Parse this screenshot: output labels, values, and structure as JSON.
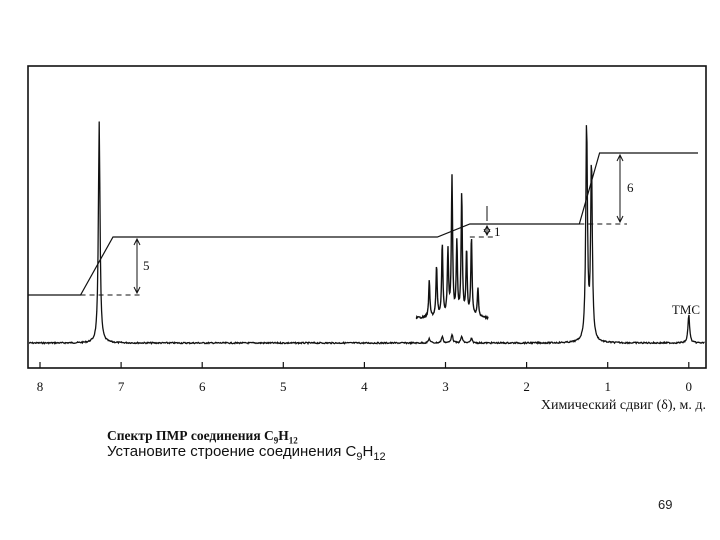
{
  "chart_data": {
    "type": "line",
    "xlabel": "Химический сдвиг (δ), м. д.",
    "xlim": [
      8.2,
      -0.2
    ],
    "x_reversed": true,
    "x_ticks": [
      8,
      7,
      6,
      5,
      4,
      3,
      2,
      1,
      0
    ],
    "peaks": [
      {
        "shift": 7.27,
        "height": 1.0,
        "label": ""
      },
      {
        "shift": 3.2,
        "height": 0.02,
        "label": ""
      },
      {
        "shift": 3.04,
        "height": 0.03,
        "label": ""
      },
      {
        "shift": 2.92,
        "height": 0.04,
        "label": ""
      },
      {
        "shift": 2.8,
        "height": 0.03,
        "label": ""
      },
      {
        "shift": 2.68,
        "height": 0.02,
        "label": ""
      },
      {
        "shift": 1.26,
        "height": 1.0,
        "label": ""
      },
      {
        "shift": 1.2,
        "height": 0.82,
        "label": ""
      },
      {
        "shift": 0.0,
        "height": 0.13,
        "label": "TMC"
      }
    ],
    "inset_multiplet": {
      "shifts": [
        3.2,
        3.11,
        3.04,
        2.97,
        2.92,
        2.86,
        2.8,
        2.74,
        2.68,
        2.6
      ],
      "heights": [
        0.25,
        0.35,
        0.5,
        0.45,
        0.95,
        0.5,
        0.85,
        0.45,
        0.55,
        0.2
      ]
    },
    "integration": [
      {
        "from": 7.5,
        "to": 7.1,
        "step": 5,
        "label": "5"
      },
      {
        "from": 3.1,
        "to": 2.7,
        "step": 1,
        "label": "1"
      },
      {
        "from": 1.35,
        "to": 1.1,
        "step": 6,
        "label": "6"
      }
    ],
    "annotations": [
      "TMC"
    ]
  },
  "captions": {
    "line1_prefix": "Спектр ПМР соединения C",
    "line1_sub1": "9",
    "line1_mid": "H",
    "line1_sub2": "12",
    "line2_prefix": "Установите строение соединения C",
    "line2_sub1": "9",
    "line2_mid": "H",
    "line2_sub2": "12"
  },
  "page_number": "69",
  "colors": {
    "ink": "#111111",
    "background": "#ffffff"
  }
}
